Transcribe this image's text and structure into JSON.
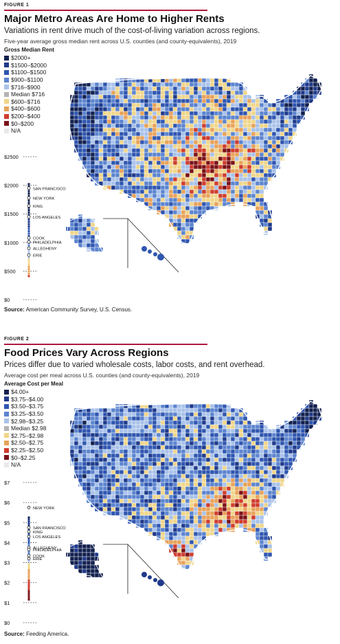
{
  "figure1": {
    "label": "FIGURE 1",
    "title": "Major Metro Areas Are Home to Higher Rents",
    "subtitle": "Variations in rent drive much of the cost-of-living variation across regions.",
    "note": "Five-year average gross median rent across U.S. counties (and county-equivalents), 2019",
    "legend_title": "Gross Median Rent",
    "legend": [
      {
        "label": "$2000+",
        "color": "#13214f"
      },
      {
        "label": "$1500–$2000",
        "color": "#1f3a8a"
      },
      {
        "label": "$1100–$1500",
        "color": "#2f56b0"
      },
      {
        "label": "$900–$1100",
        "color": "#5c84cf"
      },
      {
        "label": "$716–$900",
        "color": "#a9c2ea"
      },
      {
        "label": "Median $716",
        "color": "#b3b3b3"
      },
      {
        "label": "$600–$716",
        "color": "#f0d68a"
      },
      {
        "label": "$400–$600",
        "color": "#e8a25a"
      },
      {
        "label": "$200–$400",
        "color": "#cf3d2e"
      },
      {
        "label": "$0–$200",
        "color": "#7a1218"
      },
      {
        "label": "N/A",
        "color": "#e9e9e9"
      }
    ],
    "axis_ticks": [
      "$2500",
      "$2000",
      "$1500",
      "$1000",
      "$500",
      "$0"
    ],
    "axis_values": [
      2500,
      2000,
      1500,
      1000,
      500,
      0
    ],
    "ylim": [
      0,
      2500
    ],
    "highlights": [
      {
        "label": "SAN FRANCISCO",
        "value": 1950
      },
      {
        "label": "NEW YORK",
        "value": 1780
      },
      {
        "label": "KING",
        "value": 1640
      },
      {
        "label": "LOS ANGELES",
        "value": 1450
      },
      {
        "label": "COOK",
        "value": 1080
      },
      {
        "label": "PHILADELPHIA",
        "value": 1010
      },
      {
        "label": "ALLEGHENY",
        "value": 900
      },
      {
        "label": "ERIE",
        "value": 780
      }
    ],
    "source_label": "Source:",
    "source_text": "American Community Survey, U.S. Census."
  },
  "figure2": {
    "label": "FIGURE 2",
    "title": "Food Prices Vary Across Regions",
    "subtitle": "Prices differ due to varied wholesale costs, labor costs, and rent overhead.",
    "note": "Average cost per meal across U.S. counties (and county-equivalents), 2019",
    "legend_title": "Average Cost per Meal",
    "legend": [
      {
        "label": "$4.00+",
        "color": "#13214f"
      },
      {
        "label": "$3.75–$4.00",
        "color": "#1f3a8a"
      },
      {
        "label": "$3.50–$3.75",
        "color": "#2f56b0"
      },
      {
        "label": "$3.25–$3.50",
        "color": "#5c84cf"
      },
      {
        "label": "$2.98–$3.25",
        "color": "#a9c2ea"
      },
      {
        "label": "Median $2.98",
        "color": "#b3b3b3"
      },
      {
        "label": "$2.75–$2.98",
        "color": "#f0d68a"
      },
      {
        "label": "$2.50–$2.75",
        "color": "#e8a25a"
      },
      {
        "label": "$2.25–$2.50",
        "color": "#cf3d2e"
      },
      {
        "label": "$0–$2.25",
        "color": "#7a1218"
      },
      {
        "label": "N/A",
        "color": "#e9e9e9"
      }
    ],
    "axis_ticks": [
      "$7",
      "$6",
      "$5",
      "$4",
      "$3",
      "$2",
      "$1",
      "$0"
    ],
    "axis_values": [
      7,
      6,
      5,
      4,
      3,
      2,
      1,
      0
    ],
    "ylim": [
      0,
      7
    ],
    "highlights": [
      {
        "label": "NEW YORK",
        "value": 5.75
      },
      {
        "label": "SAN FRANCISCO",
        "value": 4.75
      },
      {
        "label": "KING",
        "value": 4.55
      },
      {
        "label": "LOS ANGELES",
        "value": 4.3
      },
      {
        "label": "ALLEGHENY",
        "value": 3.75
      },
      {
        "label": "PHILADELPHIA",
        "value": 3.65
      },
      {
        "label": "COOK",
        "value": 3.35
      },
      {
        "label": "ERIE",
        "value": 3.2
      }
    ],
    "source_label": "Source:",
    "source_text": "Feeding America."
  }
}
